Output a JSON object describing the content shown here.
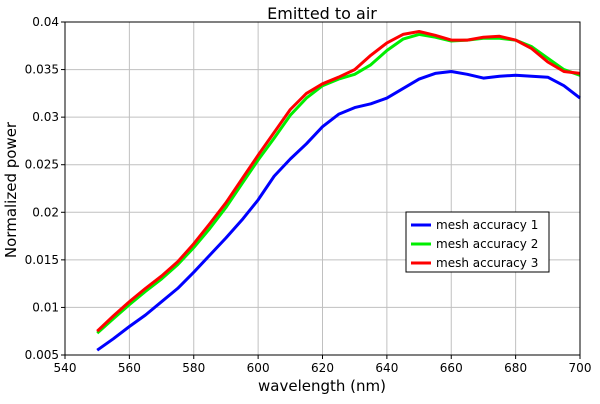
{
  "chart_data": {
    "type": "line",
    "title": "Emitted to air",
    "xlabel": "wavelength (nm)",
    "ylabel": "Normalized power",
    "xlim": [
      540,
      700
    ],
    "ylim": [
      0.005,
      0.04
    ],
    "xticks": [
      "540",
      "560",
      "580",
      "600",
      "620",
      "640",
      "660",
      "680",
      "700"
    ],
    "yticks": [
      "0.005",
      "0.01",
      "0.015",
      "0.02",
      "0.025",
      "0.03",
      "0.035",
      "0.04"
    ],
    "grid": true,
    "legend_position": "center-right",
    "x": [
      550,
      555,
      560,
      565,
      570,
      575,
      580,
      585,
      590,
      595,
      600,
      605,
      610,
      615,
      620,
      625,
      630,
      635,
      640,
      645,
      650,
      655,
      660,
      665,
      670,
      675,
      680,
      685,
      690,
      695,
      700
    ],
    "series": [
      {
        "name": "mesh accuracy 1",
        "color": "#0000ff",
        "values": [
          0.0055,
          0.0067,
          0.008,
          0.0092,
          0.0106,
          0.012,
          0.0137,
          0.0155,
          0.0173,
          0.0192,
          0.0213,
          0.0238,
          0.0256,
          0.0272,
          0.029,
          0.0303,
          0.031,
          0.0314,
          0.032,
          0.033,
          0.034,
          0.0346,
          0.0348,
          0.0345,
          0.0341,
          0.0343,
          0.0344,
          0.0343,
          0.0342,
          0.0333,
          0.032
        ]
      },
      {
        "name": "mesh accuracy 2",
        "color": "#00ee00",
        "values": [
          0.0073,
          0.0088,
          0.0103,
          0.0117,
          0.013,
          0.0145,
          0.0163,
          0.0183,
          0.0205,
          0.023,
          0.0255,
          0.0278,
          0.0302,
          0.032,
          0.0333,
          0.034,
          0.0345,
          0.0355,
          0.037,
          0.0382,
          0.0387,
          0.0384,
          0.038,
          0.0381,
          0.0383,
          0.0383,
          0.0381,
          0.0374,
          0.0362,
          0.035,
          0.0344
        ]
      },
      {
        "name": "mesh accuracy 3",
        "color": "#ff0000",
        "values": [
          0.0075,
          0.0091,
          0.0106,
          0.012,
          0.0133,
          0.0148,
          0.0167,
          0.0188,
          0.021,
          0.0235,
          0.026,
          0.0284,
          0.0308,
          0.0325,
          0.0335,
          0.0342,
          0.035,
          0.0365,
          0.0378,
          0.0387,
          0.039,
          0.0386,
          0.0381,
          0.0381,
          0.0384,
          0.0385,
          0.0381,
          0.0372,
          0.0358,
          0.0348,
          0.0346
        ]
      }
    ]
  }
}
